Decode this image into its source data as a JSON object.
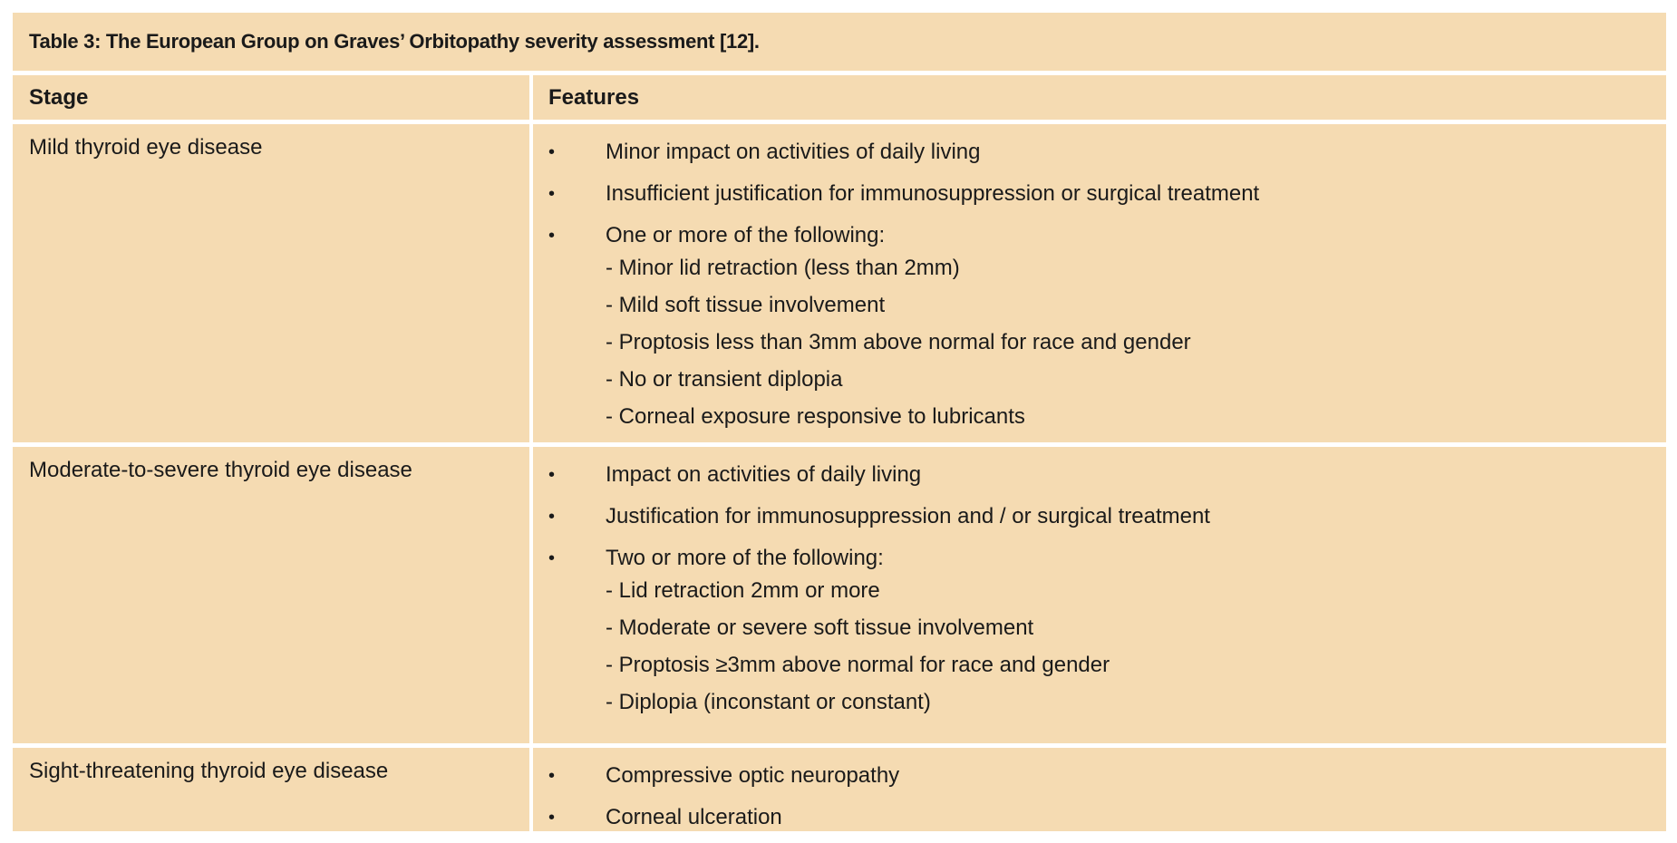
{
  "title": "Table 3: The European Group on Graves’ Orbitopathy severity assessment [12].",
  "headers": {
    "stage": "Stage",
    "features": "Features"
  },
  "bullet": "•",
  "rows": [
    {
      "stage": "Mild thyroid eye disease",
      "bullets": [
        "Minor impact on activities of daily living",
        "Insufficient justification for immunosuppression or surgical treatment",
        "One or more of the following:"
      ],
      "subitems": [
        "- Minor lid retraction (less than 2mm)",
        "- Mild soft tissue involvement",
        "- Proptosis less than 3mm above normal for race and gender",
        "- No or transient diplopia",
        "- Corneal exposure responsive to lubricants"
      ]
    },
    {
      "stage": "Moderate-to-severe thyroid eye disease",
      "bullets": [
        "Impact on activities of daily living",
        "Justification for immunosuppression and / or surgical treatment",
        "Two or more of the following:"
      ],
      "subitems": [
        "- Lid retraction 2mm or more",
        "- Moderate or severe soft tissue involvement",
        "- Proptosis ≥3mm above normal for race and gender",
        "- Diplopia (inconstant or constant)"
      ]
    },
    {
      "stage": "Sight-threatening thyroid eye disease",
      "bullets": [
        "Compressive optic neuropathy",
        "Corneal ulceration"
      ],
      "subitems": []
    }
  ]
}
